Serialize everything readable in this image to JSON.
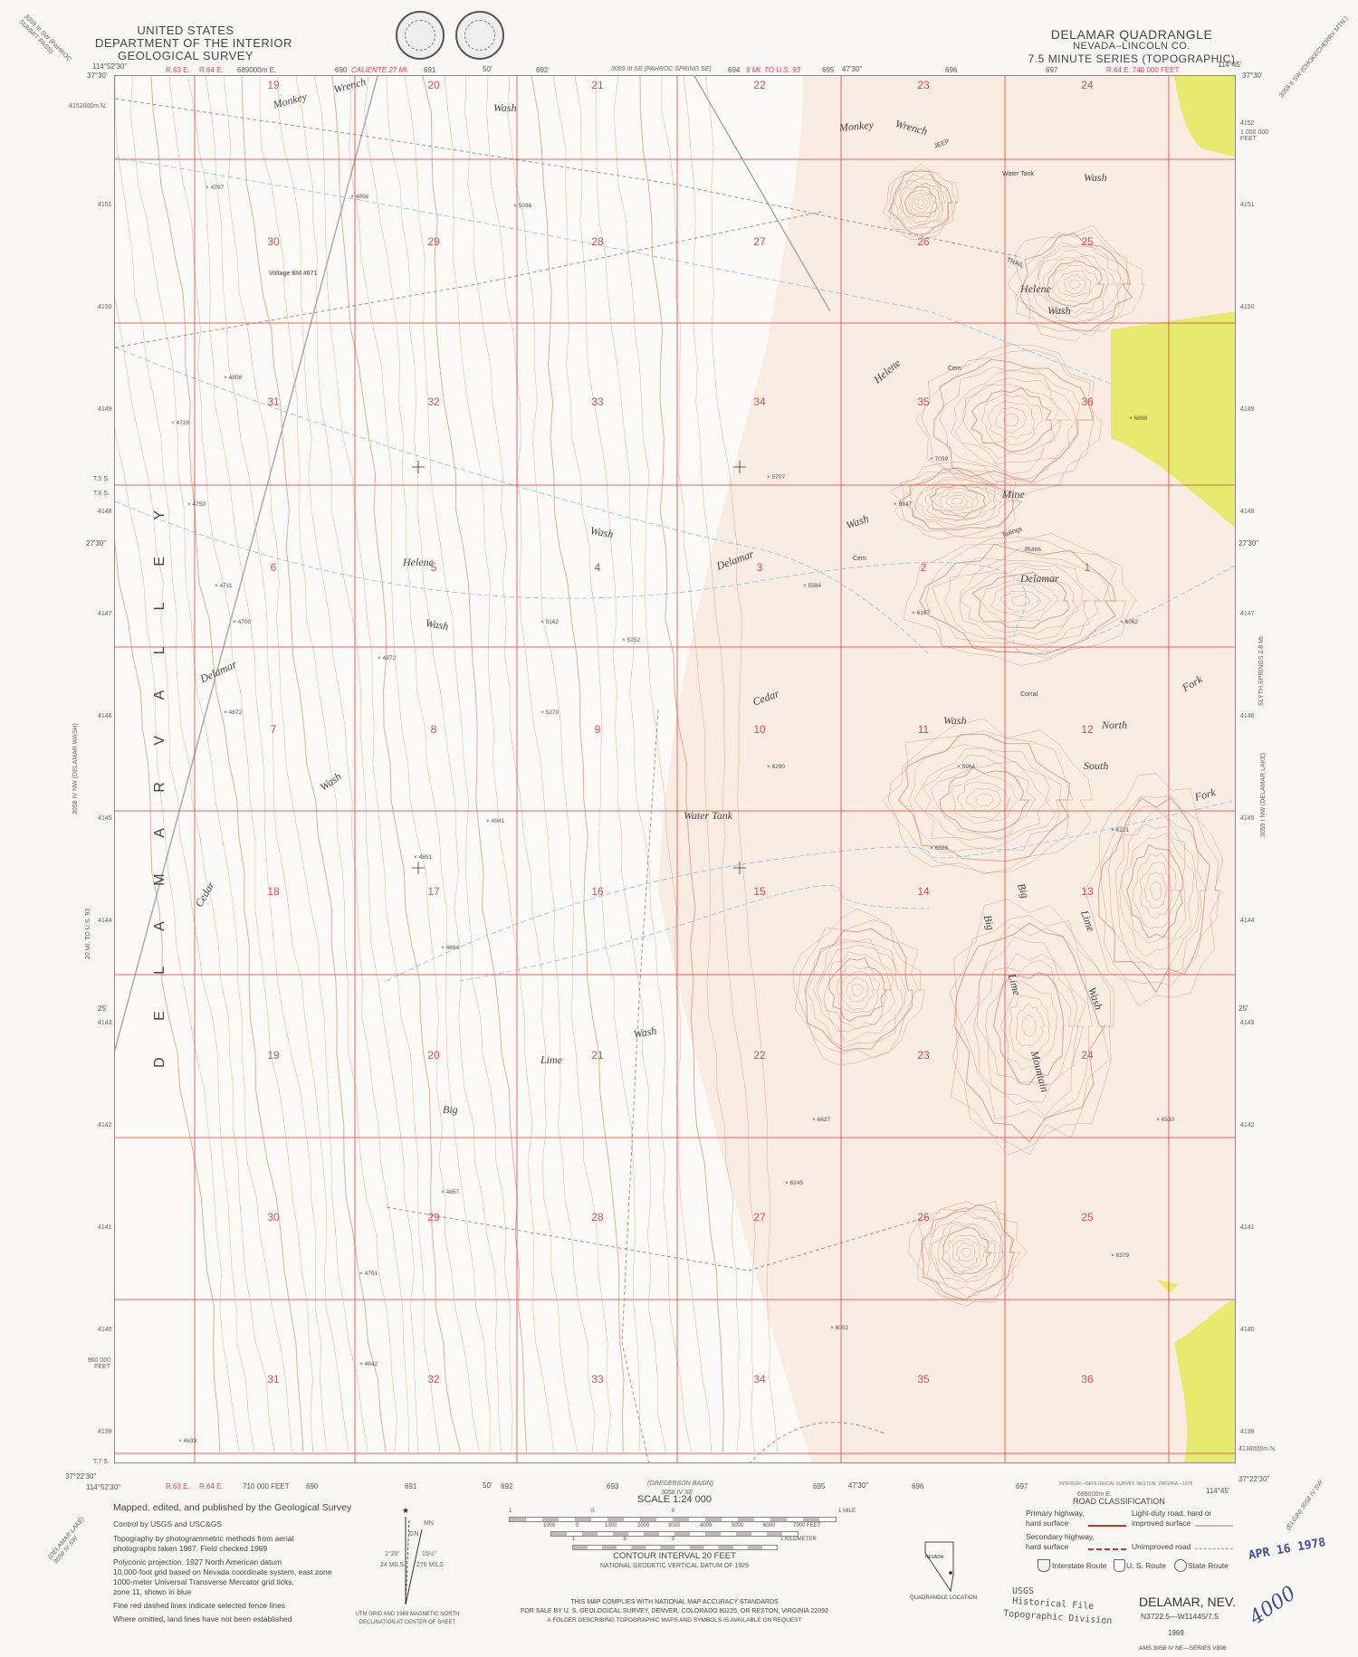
{
  "header": {
    "agency_line1": "UNITED STATES",
    "agency_line2": "DEPARTMENT OF THE INTERIOR",
    "agency_line3": "GEOLOGICAL SURVEY",
    "quad_title": "DELAMAR QUADRANGLE",
    "state_county": "NEVADA–LINCOLN CO.",
    "series": "7.5 MINUTE SERIES (TOPOGRAPHIC)",
    "adjoining_nw": "3059 III SW (PAHROC SUMMIT PASS)",
    "adjoining_ne": "3059 II SW (CHOKECHERRY MTN.)",
    "seals": [
      "department-of-interior-seal",
      "usgs-centennial-seal"
    ]
  },
  "top_margin": {
    "lon_left": "114°52'30\"",
    "lat_left": "37°30'",
    "range_63": "R.63 E.",
    "range_64": "R.64 E.",
    "utm_e_first": "689000m E.",
    "utm_690": "690",
    "caliente": "CALIENTE 27 MI.",
    "utm_691": "691",
    "min_50": "50'",
    "utm_692": "692",
    "adjoining_n": "3059 III SE (PAHROC SPRING SE)",
    "utm_694": "694",
    "to_us93": "9 MI. TO U.S. 93",
    "utm_695": "695",
    "min_4730": "47'30\"",
    "utm_696": "696",
    "utm_697": "697",
    "state_grid": "R.64 E. 740 000 FEET",
    "lon_right": "114°45'",
    "lat_right": "37°30'"
  },
  "left_margin": {
    "utm_n_first": "4152000m N.",
    "ticks": [
      "4151",
      "4150",
      "4149",
      "4148",
      "4147",
      "4146",
      "4145",
      "4144",
      "4143",
      "4142",
      "4141",
      "4140",
      "4139"
    ],
    "township_5s": "T.5 S.",
    "township_6s": "T.6 S.",
    "lat_2730": "27'30\"",
    "lat_25": "25'",
    "state_grid_n": "960 000 FEET",
    "township_7s": "T.7 S.",
    "adjoining_w": "3058 IV NW (DELAMAR WASH)",
    "to_us93": "20 MI. TO U.S. 93"
  },
  "right_margin": {
    "utm_first": "4152",
    "state_grid_n": "1 000 000 FEET",
    "ticks": [
      "4151",
      "4150",
      "4149",
      "4148",
      "4147",
      "4146",
      "4145",
      "4144",
      "4143",
      "4142",
      "4141",
      "4140",
      "4139"
    ],
    "utm_n_last": "4138000m N.",
    "lat_2730": "27'30\"",
    "lat_25": "25'",
    "adjoining_e": "3059 I NW (DELAMAR LAKE)",
    "to_alamo": "SLYTH SPRINGS 2.8 MI."
  },
  "bottom_margin": {
    "lat_left": "37°22'30\"",
    "lon_left": "114°52'30\"",
    "range_63": "R.63 E.",
    "range_64": "R.64 E.",
    "state_grid": "710 000 FEET",
    "utm_690": "690",
    "utm_691": "691",
    "min_50": "50'",
    "utm_692": "692",
    "utm_693": "693",
    "adjoining_s": "(GREGERSON BASIN)",
    "adjoining_s_code": "3058 IV SE",
    "utm_695": "695",
    "min_4730": "47'30\"",
    "utm_696": "696",
    "utm_697": "697",
    "printer": "INTERIOR—GEOLOGICAL SURVEY, RESTON, VIRGINIA—1978",
    "utm_e_last": "699000m E.",
    "lat_right": "37°22'30\"",
    "lon_right": "114°45'",
    "adjoining_sw": "(DELAMAR LAKE) 3058 IV SW",
    "adjoining_se": "(ELGIN) 3058 IV SW"
  },
  "map": {
    "colors": {
      "contour": "#c8734f",
      "grid": "#dd4444",
      "woodland": "#e6ea6e",
      "water": "#8fc3e0",
      "road": "#999999"
    },
    "sections": [
      [
        "19",
        "20",
        "21",
        "22",
        "23",
        "24"
      ],
      [
        "30",
        "29",
        "28",
        "27",
        "26",
        "25"
      ],
      [
        "31",
        "32",
        "33",
        "34",
        "35",
        "36"
      ],
      [
        "6",
        "5",
        "4",
        "3",
        "2",
        "1"
      ],
      [
        "7",
        "8",
        "9",
        "10",
        "11",
        "12"
      ],
      [
        "18",
        "17",
        "16",
        "15",
        "14",
        "13"
      ],
      [
        "19",
        "20",
        "21",
        "22",
        "23",
        "24"
      ],
      [
        "30",
        "29",
        "28",
        "27",
        "26",
        "25"
      ],
      [
        "31",
        "32",
        "33",
        "34",
        "35",
        "36"
      ]
    ],
    "valley_label": "D E L A M A R   V A L L E Y",
    "features": [
      "Monkey",
      "Wrench",
      "Wash",
      "Monkey",
      "Wrench",
      "Wash",
      "Helene",
      "Wash",
      "Helene",
      "Wash",
      "Helene",
      "Wash",
      "Wash",
      "Delamar",
      "Delamar",
      "Wash",
      "Cedar",
      "Wash",
      "North",
      "Fork",
      "South",
      "Fork",
      "Delamar",
      "Mine",
      "Water Tank",
      "Cedar",
      "Big",
      "Lime",
      "Wash",
      "Big",
      "Big",
      "Lime",
      "Mountain",
      "Lime",
      "Wash",
      "Cem",
      "Corral",
      "Tailings",
      "Ruins",
      "Voltage BM 4671",
      "JEEP",
      "TRAIL",
      "Water Tank",
      "Cem"
    ],
    "spot_elevations": [
      "4797",
      "4856",
      "5036",
      "4729",
      "4808",
      "4750",
      "4711",
      "4700",
      "4672",
      "4872",
      "5162",
      "5252",
      "5270",
      "4941",
      "4851",
      "4864",
      "4857",
      "4791",
      "4633",
      "4842",
      "6002",
      "6627",
      "6898",
      "7039",
      "6247",
      "5584",
      "6062",
      "6167",
      "5964",
      "5707",
      "6221",
      "6328",
      "6290",
      "6530",
      "6245",
      "6379"
    ]
  },
  "credits": {
    "line1": "Mapped, edited, and published by the Geological Survey",
    "line2": "Control by USGS and USC&GS",
    "line3a": "Topography by photogrammetric methods from aerial",
    "line3b": "photographs taken 1967.   Field checked 1969",
    "line4a": "Polyconic projection.   1927 North American datum",
    "line4b": "10,000-foot grid based on Nevada coordinate system, east zone",
    "line4c": "1000-meter Universal Transverse Mercator grid ticks,",
    "line4d": "zone 11, shown in blue",
    "line5": "Fine red dashed lines indicate selected fence lines",
    "line6": "Where omitted, land lines have not been established"
  },
  "declination": {
    "true_north": "★",
    "grid_north": "GN",
    "magnetic_north": "MN",
    "gn_angle": "1°20'",
    "gn_mils": "24 MILS",
    "mn_angle": "15½°",
    "mn_mils": "276 MILS",
    "caption1": "UTM GRID AND 1969 MAGNETIC NORTH",
    "caption2": "DECLINATION AT CENTER OF SHEET"
  },
  "scale": {
    "title": "SCALE 1:24 000",
    "mile_labels": [
      "1",
      "½",
      "0",
      "1 MILE"
    ],
    "feet_labels": [
      "1000",
      "0",
      "1000",
      "2000",
      "3000",
      "4000",
      "5000",
      "6000",
      "7000 FEET"
    ],
    "km_labels": [
      "1",
      ".5",
      "0",
      "1 KILOMETER"
    ],
    "contour_interval": "CONTOUR INTERVAL 20 FEET",
    "datum": "NATIONAL GEODETIC VERTICAL DATUM OF 1929"
  },
  "compliance": {
    "line1": "THIS MAP COMPLIES WITH NATIONAL MAP ACCURACY STANDARDS",
    "line2": "FOR SALE BY U. S. GEOLOGICAL SURVEY, DENVER, COLORADO 80225, OR RESTON, VIRGINIA 22092",
    "line3": "A FOLDER DESCRIBING TOPOGRAPHIC MAPS AND SYMBOLS IS AVAILABLE ON REQUEST"
  },
  "location": {
    "state": "NEVADA",
    "caption": "QUADRANGLE LOCATION"
  },
  "roads": {
    "title": "ROAD CLASSIFICATION",
    "primary1": "Primary highway,",
    "primary2": "hard surface",
    "light1": "Light-duty road, hard or",
    "light2": "improved surface",
    "secondary1": "Secondary highway,",
    "secondary2": "hard surface",
    "unimproved": "Unimproved road",
    "interstate": "Interstate Route",
    "us": "U. S. Route",
    "state": "State Route"
  },
  "stamps": {
    "date": "APR 16 1978",
    "usgs": "USGS",
    "historical": "Historical File",
    "division": "Topographic Division",
    "handwritten": "4000"
  },
  "imprint": {
    "name": "DELAMAR, NEV.",
    "code": "N3722.5—W11445/7.5",
    "year": "1969",
    "series": "AMS 3058 IV NE—SERIES V896"
  }
}
